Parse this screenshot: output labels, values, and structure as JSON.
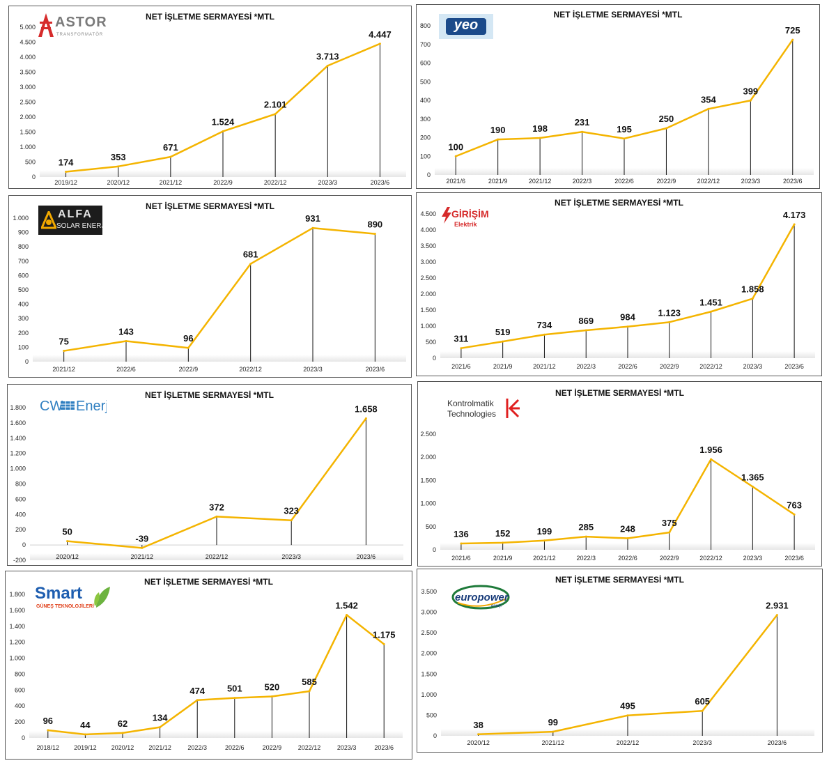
{
  "colors": {
    "line": "#F4B400",
    "drop": "#111111",
    "floor": "#e6e6e6"
  },
  "panels": [
    {
      "id": "astor",
      "title": "NET İŞLETME SERMAYESİ *MTL",
      "logo": {
        "name": "ASTOR",
        "sub": "TRANSFORMATÖR"
      },
      "chart_data": {
        "type": "line",
        "title": "NET İŞLETME SERMAYESİ *MTL",
        "categories": [
          "2019/12",
          "2020/12",
          "2021/12",
          "2022/9",
          "2022/12",
          "2023/3",
          "2023/6"
        ],
        "values": [
          174,
          353,
          671,
          1524,
          2101,
          3713,
          4447
        ],
        "value_labels": [
          "174",
          "353",
          "671",
          "1.524",
          "2.101",
          "3.713",
          "4.447"
        ],
        "ylim": [
          0,
          5000
        ],
        "yticks": [
          0,
          500,
          1000,
          1500,
          2000,
          2500,
          3000,
          3500,
          4000,
          4500,
          5000
        ],
        "ytick_labels": [
          "0",
          "500",
          "1.000",
          "1.500",
          "2.000",
          "2.500",
          "3.000",
          "3.500",
          "4.000",
          "4.500",
          "5.000"
        ]
      }
    },
    {
      "id": "yeo",
      "title": "NET İŞLETME SERMAYESİ *MTL",
      "logo": {
        "name": "yeo"
      },
      "chart_data": {
        "type": "line",
        "title": "NET İŞLETME SERMAYESİ *MTL",
        "categories": [
          "2021/6",
          "2021/9",
          "2021/12",
          "2022/3",
          "2022/6",
          "2022/9",
          "2022/12",
          "2023/3",
          "2023/6"
        ],
        "values": [
          100,
          190,
          198,
          231,
          195,
          250,
          354,
          399,
          725
        ],
        "value_labels": [
          "100",
          "190",
          "198",
          "231",
          "195",
          "250",
          "354",
          "399",
          "725"
        ],
        "ylim": [
          0,
          800
        ],
        "yticks": [
          0,
          100,
          200,
          300,
          400,
          500,
          600,
          700,
          800
        ],
        "ytick_labels": [
          "0",
          "100",
          "200",
          "300",
          "400",
          "500",
          "600",
          "700",
          "800"
        ]
      }
    },
    {
      "id": "alfa",
      "title": "NET İŞLETME SERMAYESİ *MTL",
      "logo": {
        "name": "ALFA",
        "sub": "SOLAR ENERJİ"
      },
      "chart_data": {
        "type": "line",
        "title": "NET İŞLETME SERMAYESİ *MTL",
        "categories": [
          "2021/12",
          "2022/6",
          "2022/9",
          "2022/12",
          "2023/3",
          "2023/6"
        ],
        "values": [
          75,
          143,
          96,
          681,
          931,
          890
        ],
        "value_labels": [
          "75",
          "143",
          "96",
          "681",
          "931",
          "890"
        ],
        "ylim": [
          0,
          1000
        ],
        "yticks": [
          0,
          100,
          200,
          300,
          400,
          500,
          600,
          700,
          800,
          900,
          1000
        ],
        "ytick_labels": [
          "0",
          "100",
          "200",
          "300",
          "400",
          "500",
          "600",
          "700",
          "800",
          "900",
          "1.000"
        ]
      }
    },
    {
      "id": "girisim",
      "title": "NET İŞLETME SERMAYESİ *MTL",
      "logo": {
        "name": "GİRİŞİM",
        "sub": "Elektrik"
      },
      "chart_data": {
        "type": "line",
        "title": "NET İŞLETME SERMAYESİ *MTL",
        "categories": [
          "2021/6",
          "2021/9",
          "2021/12",
          "2022/3",
          "2022/6",
          "2022/9",
          "2022/12",
          "2023/3",
          "2023/6"
        ],
        "values": [
          311,
          519,
          734,
          869,
          984,
          1123,
          1451,
          1858,
          4173
        ],
        "value_labels": [
          "311",
          "519",
          "734",
          "869",
          "984",
          "1.123",
          "1.451",
          "1.858",
          "4.173"
        ],
        "ylim": [
          0,
          4500
        ],
        "yticks": [
          0,
          500,
          1000,
          1500,
          2000,
          2500,
          3000,
          3500,
          4000,
          4500
        ],
        "ytick_labels": [
          "0",
          "500",
          "1.000",
          "1.500",
          "2.000",
          "2.500",
          "3.000",
          "3.500",
          "4.000",
          "4.500"
        ]
      }
    },
    {
      "id": "cw",
      "title": "NET İŞLETME SERMAYESİ *MTL",
      "logo": {
        "name": "CW",
        "sub": "Enerji"
      },
      "chart_data": {
        "type": "line",
        "title": "NET İŞLETME SERMAYESİ *MTL",
        "categories": [
          "2020/12",
          "2021/12",
          "2022/12",
          "2023/3",
          "2023/6"
        ],
        "values": [
          50,
          -39,
          372,
          323,
          1658
        ],
        "value_labels": [
          "50",
          "-39",
          "372",
          "323",
          "1.658"
        ],
        "ylim": [
          -200,
          1800
        ],
        "yticks": [
          -200,
          0,
          200,
          400,
          600,
          800,
          1000,
          1200,
          1400,
          1600,
          1800
        ],
        "ytick_labels": [
          "-200",
          "0",
          "200",
          "400",
          "600",
          "800",
          "1.000",
          "1.200",
          "1.400",
          "1.600",
          "1.800"
        ]
      }
    },
    {
      "id": "kontrolmatik",
      "title": "NET İŞLETME SERMAYESİ *MTL",
      "logo": {
        "name": "Kontrolmatik",
        "sub": "Technologies"
      },
      "chart_data": {
        "type": "line",
        "title": "NET İŞLETME SERMAYESİ *MTL",
        "categories": [
          "2021/6",
          "2021/9",
          "2021/12",
          "2022/3",
          "2022/6",
          "2022/9",
          "2022/12",
          "2023/3",
          "2023/6"
        ],
        "values": [
          136,
          152,
          199,
          285,
          248,
          375,
          1956,
          1365,
          763
        ],
        "value_labels": [
          "136",
          "152",
          "199",
          "285",
          "248",
          "375",
          "1.956",
          "1.365",
          "763"
        ],
        "ylim": [
          0,
          2500
        ],
        "yticks": [
          0,
          500,
          1000,
          1500,
          2000,
          2500
        ],
        "ytick_labels": [
          "0",
          "500",
          "1.000",
          "1.500",
          "2.000",
          "2.500"
        ]
      }
    },
    {
      "id": "smart",
      "title": "NET İŞLETME SERMAYESİ *MTL",
      "logo": {
        "name": "Smart",
        "sub": "GÜNEŞ TEKNOLOJİLERİ"
      },
      "chart_data": {
        "type": "line",
        "title": "NET İŞLETME SERMAYESİ *MTL",
        "categories": [
          "2018/12",
          "2019/12",
          "2020/12",
          "2021/12",
          "2022/3",
          "2022/6",
          "2022/9",
          "2022/12",
          "2023/3",
          "2023/6"
        ],
        "values": [
          96,
          44,
          62,
          134,
          474,
          501,
          520,
          585,
          1542,
          1175
        ],
        "value_labels": [
          "96",
          "44",
          "62",
          "134",
          "474",
          "501",
          "520",
          "585",
          "1.542",
          "1.175"
        ],
        "ylim": [
          0,
          1800
        ],
        "yticks": [
          0,
          200,
          400,
          600,
          800,
          1000,
          1200,
          1400,
          1600,
          1800
        ],
        "ytick_labels": [
          "0",
          "200",
          "400",
          "600",
          "800",
          "1.000",
          "1.200",
          "1.400",
          "1.600",
          "1.800"
        ]
      }
    },
    {
      "id": "europower",
      "title": "NET İŞLETME SERMAYESİ *MTL",
      "logo": {
        "name": "europower",
        "sub": "enerji"
      },
      "chart_data": {
        "type": "line",
        "title": "NET İŞLETME SERMAYESİ *MTL",
        "categories": [
          "2020/12",
          "2021/12",
          "2022/12",
          "2023/3",
          "2023/6"
        ],
        "values": [
          38,
          99,
          495,
          605,
          2931
        ],
        "value_labels": [
          "38",
          "99",
          "495",
          "605",
          "2.931"
        ],
        "ylim": [
          0,
          3500
        ],
        "yticks": [
          0,
          500,
          1000,
          1500,
          2000,
          2500,
          3000,
          3500
        ],
        "ytick_labels": [
          "0",
          "500",
          "1.000",
          "1.500",
          "2.000",
          "2.500",
          "3.000",
          "3.500"
        ]
      }
    }
  ]
}
